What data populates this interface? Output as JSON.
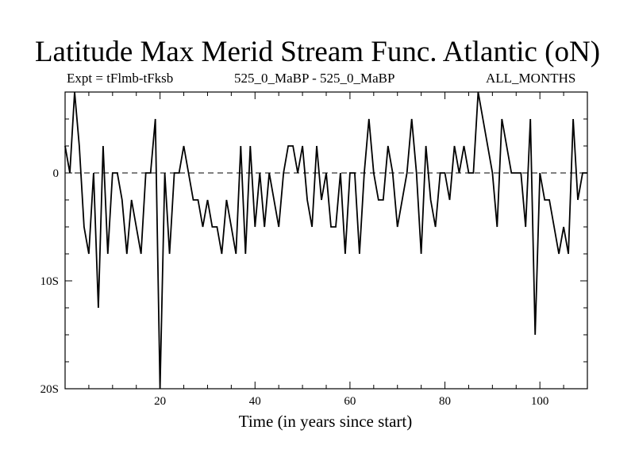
{
  "chart_data": {
    "type": "line",
    "title": "Latitude Max Merid Stream Func. Atlantic (oN)",
    "subtitle_left": "Expt = tFlmb-tFksb",
    "subtitle_center": "525_0_MaBP - 525_0_MaBP",
    "subtitle_right": "ALL_MONTHS",
    "xlabel": "Time (in years since start)",
    "ylabel": "",
    "xlim": [
      0,
      110
    ],
    "ylim": [
      -20,
      7.5
    ],
    "x_ticks": [
      20,
      40,
      60,
      80,
      100
    ],
    "x_tick_labels": [
      "20",
      "40",
      "60",
      "80",
      "100"
    ],
    "y_ticks": [
      0,
      -10,
      -20
    ],
    "y_tick_labels": [
      "0",
      "10S",
      "20S"
    ],
    "reference_line": 0,
    "series": [
      {
        "name": "Latitude",
        "x": [
          0,
          1,
          2,
          3,
          4,
          5,
          6,
          7,
          8,
          9,
          10,
          11,
          12,
          13,
          14,
          15,
          16,
          17,
          18,
          19,
          20,
          21,
          22,
          23,
          24,
          25,
          26,
          27,
          28,
          29,
          30,
          31,
          32,
          33,
          34,
          35,
          36,
          37,
          38,
          39,
          40,
          41,
          42,
          43,
          44,
          45,
          46,
          47,
          48,
          49,
          50,
          51,
          52,
          53,
          54,
          55,
          56,
          57,
          58,
          59,
          60,
          61,
          62,
          63,
          64,
          65,
          66,
          67,
          68,
          69,
          70,
          71,
          72,
          73,
          74,
          75,
          76,
          77,
          78,
          79,
          80,
          81,
          82,
          83,
          84,
          85,
          86,
          87,
          88,
          89,
          90,
          91,
          92,
          93,
          94,
          95,
          96,
          97,
          98,
          99,
          100,
          101,
          102,
          103,
          104,
          105,
          106,
          107,
          108,
          109,
          110
        ],
        "values": [
          2.5,
          0,
          7.5,
          2.5,
          -5,
          -7.5,
          0,
          -12.5,
          2.5,
          -7.5,
          0,
          0,
          -2.5,
          -7.5,
          -2.5,
          -5,
          -7.5,
          0,
          0,
          5,
          -20,
          0,
          -7.5,
          0,
          0,
          2.5,
          0,
          -2.5,
          -2.5,
          -5,
          -2.5,
          -5,
          -5,
          -7.5,
          -2.5,
          -5,
          -7.5,
          2.5,
          -7.5,
          2.5,
          -5,
          0,
          -5,
          0,
          -2.5,
          -5,
          0,
          2.5,
          2.5,
          0,
          2.5,
          -2.5,
          -5,
          2.5,
          -2.5,
          0,
          -5,
          -5,
          0,
          -7.5,
          0,
          0,
          -7.5,
          0,
          5,
          0,
          -2.5,
          -2.5,
          2.5,
          0,
          -5,
          -2.5,
          0,
          5,
          0,
          -7.5,
          2.5,
          -2.5,
          -5,
          0,
          0,
          -2.5,
          2.5,
          0,
          2.5,
          0,
          0,
          7.5,
          5,
          2.5,
          0,
          -5,
          5,
          2.5,
          0,
          0,
          0,
          -5,
          5,
          -15,
          0,
          -2.5,
          -2.5,
          -5,
          -7.5,
          -5,
          -7.5,
          5,
          -2.5,
          0,
          0
        ]
      }
    ]
  }
}
